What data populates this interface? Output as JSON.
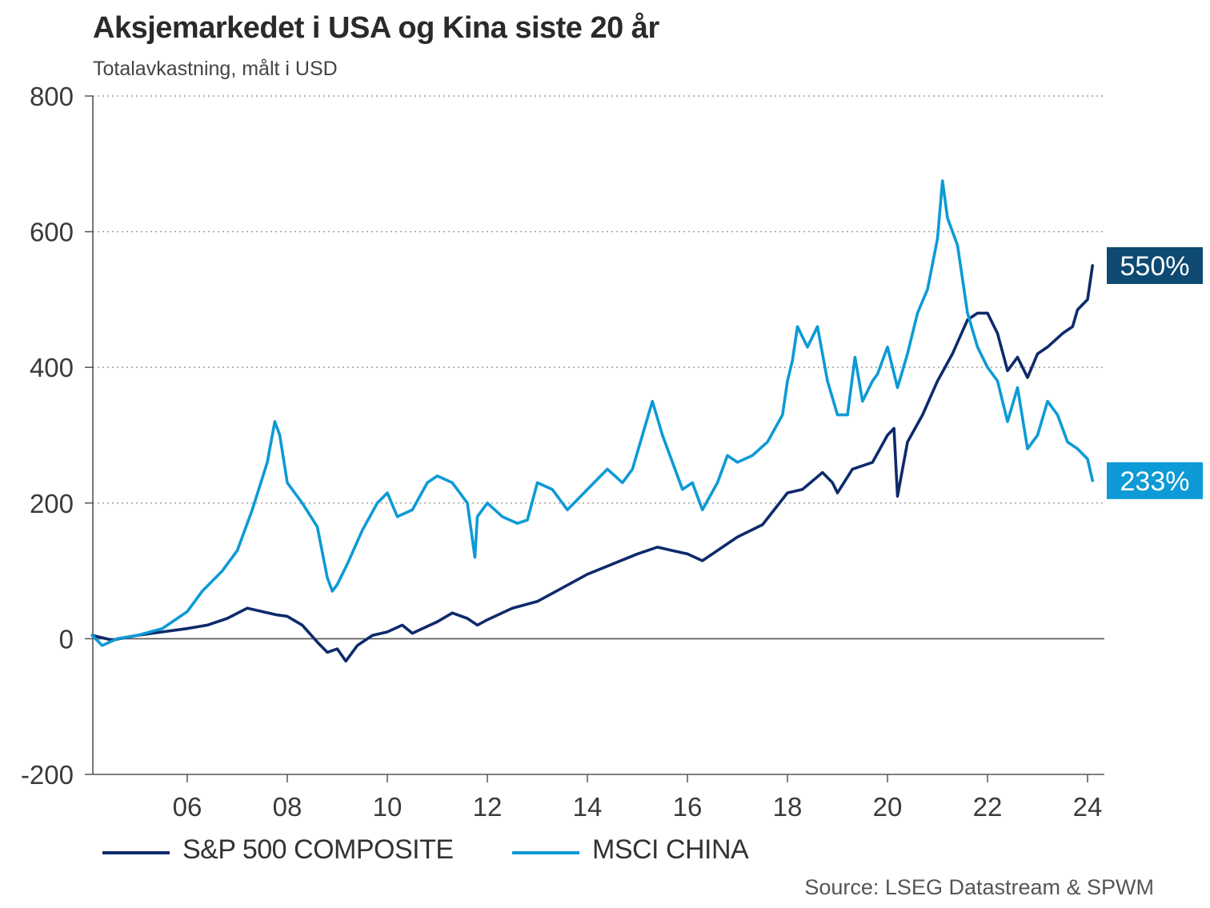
{
  "chart_data": {
    "type": "line",
    "title": "Aksjemarkedet i USA og Kina siste 20 år",
    "subtitle": "Totalavkastning, målt i USD",
    "source": "Source: LSEG Datastream & SPWM",
    "ylim": [
      -200,
      800
    ],
    "yticks": [
      800,
      600,
      400,
      200,
      0,
      -200
    ],
    "xlim": [
      2004.1,
      2024.3
    ],
    "xticks": [
      {
        "value": 2006,
        "label": "06"
      },
      {
        "value": 2008,
        "label": "08"
      },
      {
        "value": 2010,
        "label": "10"
      },
      {
        "value": 2012,
        "label": "12"
      },
      {
        "value": 2014,
        "label": "14"
      },
      {
        "value": 2016,
        "label": "16"
      },
      {
        "value": 2018,
        "label": "18"
      },
      {
        "value": 2020,
        "label": "20"
      },
      {
        "value": 2022,
        "label": "22"
      },
      {
        "value": 2024,
        "label": "24"
      }
    ],
    "grid": true,
    "legend_position": "bottom",
    "series": [
      {
        "name": "S&P 500 COMPOSITE",
        "color": "#0d2a6b",
        "end_label": "550%",
        "end_label_bg": "#0e4a72",
        "x": [
          2004.1,
          2004.5,
          2005.0,
          2005.5,
          2006.0,
          2006.4,
          2006.8,
          2007.2,
          2007.5,
          2007.8,
          2008.0,
          2008.3,
          2008.6,
          2008.8,
          2009.0,
          2009.17,
          2009.4,
          2009.7,
          2010.0,
          2010.3,
          2010.5,
          2010.7,
          2011.0,
          2011.3,
          2011.6,
          2011.8,
          2012.0,
          2012.5,
          2013.0,
          2013.5,
          2014.0,
          2014.5,
          2015.0,
          2015.4,
          2015.7,
          2016.0,
          2016.3,
          2016.7,
          2017.0,
          2017.5,
          2018.0,
          2018.3,
          2018.7,
          2018.9,
          2019.0,
          2019.3,
          2019.7,
          2020.0,
          2020.13,
          2020.2,
          2020.4,
          2020.7,
          2021.0,
          2021.3,
          2021.6,
          2021.8,
          2022.0,
          2022.2,
          2022.4,
          2022.6,
          2022.8,
          2023.0,
          2023.2,
          2023.5,
          2023.7,
          2023.8,
          2024.0,
          2024.1
        ],
        "values": [
          5,
          -2,
          5,
          10,
          15,
          20,
          30,
          45,
          40,
          35,
          33,
          20,
          -5,
          -20,
          -15,
          -33,
          -10,
          5,
          10,
          20,
          8,
          15,
          25,
          38,
          30,
          20,
          28,
          45,
          55,
          75,
          95,
          110,
          125,
          135,
          130,
          125,
          115,
          135,
          150,
          168,
          215,
          220,
          245,
          230,
          215,
          250,
          260,
          300,
          310,
          210,
          290,
          330,
          380,
          420,
          470,
          480,
          480,
          450,
          395,
          415,
          385,
          420,
          430,
          450,
          460,
          485,
          500,
          550
        ]
      },
      {
        "name": "MSCI CHINA",
        "color": "#0d9ad6",
        "end_label": "233%",
        "end_label_bg": "#0d9ad6",
        "x": [
          2004.1,
          2004.3,
          2004.6,
          2005.0,
          2005.5,
          2006.0,
          2006.3,
          2006.7,
          2007.0,
          2007.3,
          2007.6,
          2007.75,
          2007.85,
          2008.0,
          2008.3,
          2008.6,
          2008.8,
          2008.9,
          2009.0,
          2009.2,
          2009.5,
          2009.8,
          2010.0,
          2010.2,
          2010.5,
          2010.8,
          2011.0,
          2011.3,
          2011.6,
          2011.75,
          2011.8,
          2012.0,
          2012.3,
          2012.6,
          2012.8,
          2013.0,
          2013.3,
          2013.6,
          2014.0,
          2014.4,
          2014.7,
          2014.9,
          2015.3,
          2015.5,
          2015.7,
          2015.9,
          2016.1,
          2016.3,
          2016.6,
          2016.8,
          2017.0,
          2017.3,
          2017.6,
          2017.9,
          2018.0,
          2018.1,
          2018.2,
          2018.4,
          2018.6,
          2018.8,
          2019.0,
          2019.2,
          2019.35,
          2019.5,
          2019.7,
          2019.8,
          2020.0,
          2020.2,
          2020.4,
          2020.6,
          2020.8,
          2021.0,
          2021.1,
          2021.2,
          2021.4,
          2021.6,
          2021.8,
          2022.0,
          2022.2,
          2022.4,
          2022.6,
          2022.8,
          2023.0,
          2023.2,
          2023.4,
          2023.6,
          2023.8,
          2024.0,
          2024.1
        ],
        "values": [
          5,
          -10,
          0,
          5,
          15,
          40,
          70,
          100,
          130,
          190,
          260,
          320,
          300,
          230,
          200,
          165,
          90,
          70,
          80,
          110,
          160,
          200,
          215,
          180,
          190,
          230,
          240,
          230,
          200,
          120,
          180,
          200,
          180,
          170,
          175,
          230,
          220,
          190,
          220,
          250,
          230,
          250,
          350,
          300,
          260,
          220,
          230,
          190,
          230,
          270,
          260,
          270,
          290,
          330,
          380,
          410,
          460,
          430,
          460,
          380,
          330,
          330,
          415,
          350,
          380,
          390,
          430,
          370,
          420,
          480,
          515,
          590,
          675,
          620,
          580,
          480,
          430,
          400,
          380,
          320,
          370,
          280,
          300,
          350,
          330,
          290,
          280,
          265,
          233
        ]
      }
    ]
  }
}
